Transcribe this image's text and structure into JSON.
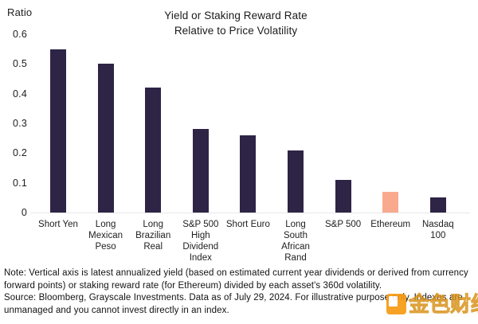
{
  "chart": {
    "y_axis_title": "Ratio",
    "title_line1": "Yield or Staking Reward Rate",
    "title_line2": "Relative to Price Volatility"
  },
  "chart_data": {
    "type": "bar",
    "title": "Yield or Staking Reward Rate Relative to Price Volatility",
    "ylabel": "Ratio",
    "xlabel": "",
    "ylim": [
      0,
      0.6
    ],
    "ytick_values": [
      0,
      0.1,
      0.2,
      0.3,
      0.4,
      0.5,
      0.6
    ],
    "ytick_labels": [
      "0",
      "0.1",
      "0.2",
      "0.3",
      "0.4",
      "0.5",
      "0.6"
    ],
    "grid": false,
    "legend": false,
    "categories": [
      "Short Yen",
      "Long Mexican Peso",
      "Long Brazilian Real",
      "S&P 500 High Dividend Index",
      "Short Euro",
      "Long South African Rand",
      "S&P 500",
      "Ethereum",
      "Nasdaq 100"
    ],
    "values": [
      0.55,
      0.5,
      0.42,
      0.28,
      0.26,
      0.21,
      0.11,
      0.07,
      0.05
    ],
    "default_bar_color": "#2e2446",
    "highlight_category": "Ethereum",
    "highlight_color": "#f9aa8e",
    "bar_colors": [
      "#2e2446",
      "#2e2446",
      "#2e2446",
      "#2e2446",
      "#2e2446",
      "#2e2446",
      "#2e2446",
      "#f9aa8e",
      "#2e2446"
    ]
  },
  "footnote": {
    "note": "Note: Vertical axis is latest annualized yield (based on estimated current year dividends or derived from currency forward points) or staking reward rate (for Ethereum) divided by each asset's 360d volatility.",
    "source": "Source: Bloomberg, Grayscale Investments. Data as of July 29, 2024. For illustrative purpose only. Indexes are unmanaged and you cannot invest directly in an index."
  },
  "watermark": {
    "text": "金色财经",
    "icon_color": "#f6990e"
  }
}
